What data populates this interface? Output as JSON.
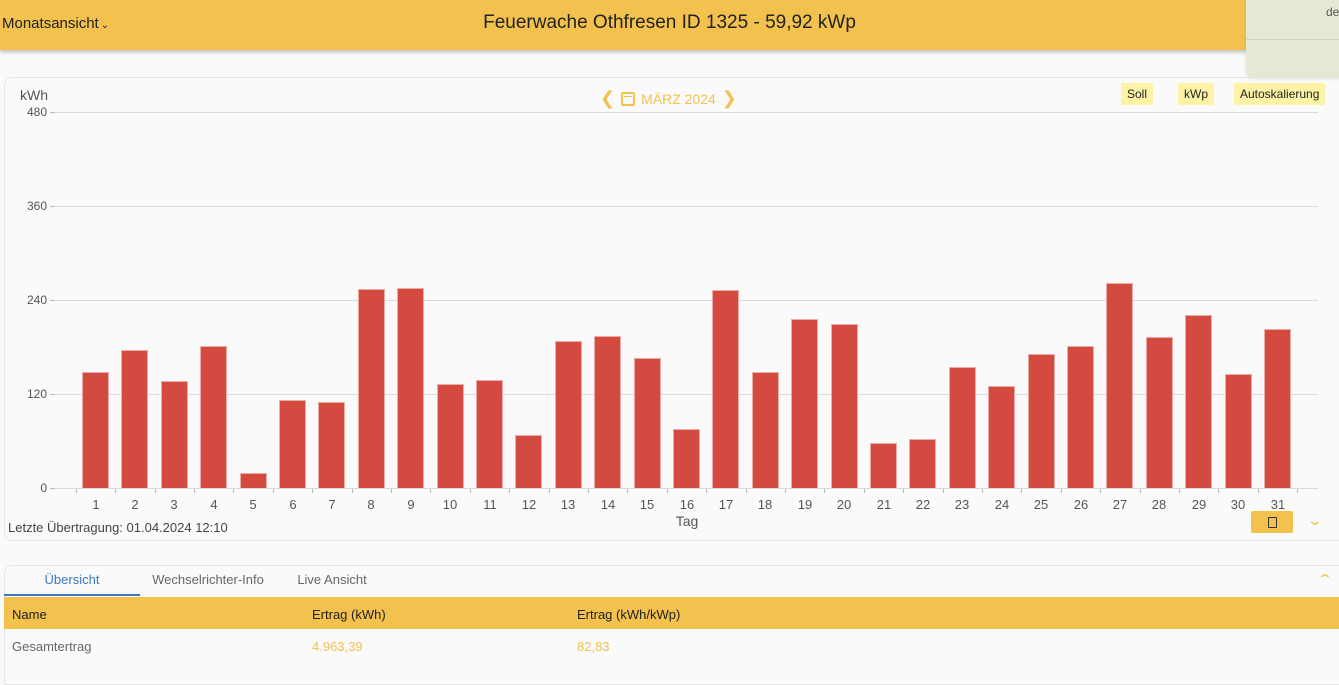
{
  "header": {
    "view_select": "Monatsansicht",
    "title": "Feuerwache Othfresen ID 1325 - 59,92 kWp",
    "popover_text": "de"
  },
  "chart_controls": {
    "month_label": "MÄRZ 2024",
    "toggles": [
      "Soll",
      "kWp",
      "Autoskalierung"
    ],
    "last_transfer": "Letzte Übertragung: 01.04.2024 12:10"
  },
  "chart_data": {
    "type": "bar",
    "title": "Feuerwache Othfresen ID 1325 - 59,92 kWp — MÄRZ 2024",
    "xlabel": "Tag",
    "ylabel": "kWh",
    "ylim": [
      0,
      480
    ],
    "yticks": [
      0,
      120,
      240,
      360,
      480
    ],
    "grid": true,
    "color": "#d44a40",
    "categories": [
      "1",
      "2",
      "3",
      "4",
      "5",
      "6",
      "7",
      "8",
      "9",
      "10",
      "11",
      "12",
      "13",
      "14",
      "15",
      "16",
      "17",
      "18",
      "19",
      "20",
      "21",
      "22",
      "23",
      "24",
      "25",
      "26",
      "27",
      "28",
      "29",
      "30",
      "31"
    ],
    "values": [
      148,
      176,
      137,
      181,
      19,
      112,
      110,
      254,
      255,
      133,
      138,
      68,
      188,
      194,
      166,
      75,
      253,
      148,
      216,
      209,
      57,
      63,
      154,
      130,
      171,
      181,
      262,
      193,
      221,
      146,
      203
    ]
  },
  "tabs": [
    {
      "label": "Übersicht",
      "active": true
    },
    {
      "label": "Wechselrichter-Info",
      "active": false
    },
    {
      "label": "Live Ansicht",
      "active": false
    }
  ],
  "table": {
    "headers": [
      "Name",
      "Ertrag (kWh)",
      "Ertrag (kWh/kWp)"
    ],
    "rows": [
      [
        "Gesamtertrag",
        "4.963,39",
        "82,83"
      ]
    ]
  },
  "colors": {
    "accent": "#f2c14e",
    "bar": "#d44a40",
    "active_tab": "#3b78c4",
    "toggle_bg": "#fdf3a7"
  }
}
